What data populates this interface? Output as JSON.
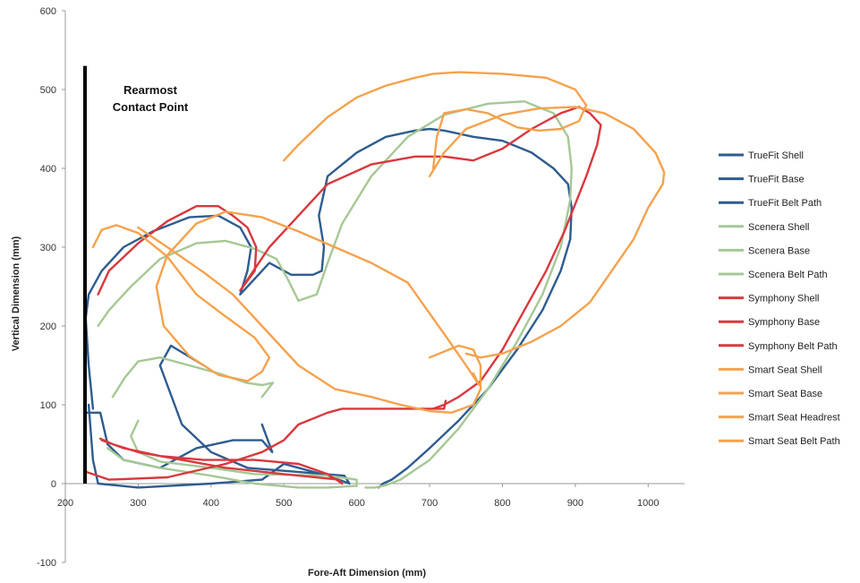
{
  "chart_data": {
    "type": "line",
    "xlabel": "Fore-Aft Dimension (mm)",
    "ylabel": "Vertical Dimension (mm)",
    "xlim": [
      200,
      1050
    ],
    "ylim": [
      -100,
      600
    ],
    "x_ticks": [
      "200",
      "300",
      "400",
      "500",
      "600",
      "700",
      "800",
      "900",
      "1000"
    ],
    "y_ticks": [
      "-100",
      "0",
      "100",
      "200",
      "300",
      "400",
      "500",
      "600"
    ],
    "grid": false,
    "legend_position": "right",
    "annotation": {
      "lines": [
        "Rearmost",
        "Contact Point"
      ],
      "x": 227,
      "y_from": 0,
      "y_to": 530
    },
    "colors": {
      "truefit": "#2E5C8F",
      "scenera": "#A6C895",
      "symphony": "#D9383E",
      "smart_seat": "#F5A24D"
    },
    "series": [
      {
        "name": "TrueFit Shell",
        "color": "#2E5C8F",
        "x": [
          238,
          232,
          228,
          232,
          250,
          280,
          320,
          370,
          410,
          440,
          455,
          450,
          440,
          480,
          510,
          540,
          552,
          555,
          548,
          560,
          600,
          640,
          680,
          700,
          720,
          760,
          800,
          840,
          870,
          890,
          895,
          893,
          880,
          855,
          820,
          780,
          740,
          700,
          670,
          648,
          636,
          630
        ],
        "y": [
          95,
          150,
          210,
          240,
          270,
          300,
          320,
          338,
          340,
          325,
          300,
          270,
          240,
          280,
          265,
          265,
          270,
          300,
          340,
          390,
          420,
          440,
          448,
          450,
          448,
          440,
          435,
          420,
          400,
          380,
          350,
          310,
          270,
          220,
          170,
          120,
          80,
          45,
          20,
          5,
          0,
          -5
        ]
      },
      {
        "name": "TrueFit Base",
        "color": "#2E5C8F",
        "x": [
          232,
          238,
          245,
          300,
          400,
          470,
          500,
          560,
          590,
          583,
          450,
          400,
          360,
          330,
          345,
          390
        ],
        "y": [
          100,
          30,
          0,
          -5,
          0,
          5,
          25,
          10,
          0,
          10,
          20,
          40,
          75,
          150,
          175,
          150
        ]
      },
      {
        "name": "TrueFit Belt Path",
        "color": "#2E5C8F",
        "x": [
          230,
          248,
          258,
          280,
          330,
          380,
          430,
          470,
          484,
          470
        ],
        "y": [
          90,
          90,
          50,
          30,
          20,
          45,
          55,
          55,
          40,
          75
        ]
      },
      {
        "name": "Scenera Shell",
        "color": "#A6C895",
        "x": [
          245,
          260,
          290,
          330,
          380,
          420,
          460,
          490,
          505,
          520,
          545,
          560,
          580,
          620,
          670,
          720,
          780,
          830,
          870,
          890,
          895,
          893,
          880,
          855,
          820,
          780,
          740,
          700,
          660,
          640,
          625,
          612
        ],
        "y": [
          200,
          220,
          250,
          285,
          305,
          308,
          298,
          285,
          260,
          232,
          240,
          280,
          330,
          390,
          440,
          468,
          482,
          485,
          470,
          440,
          400,
          360,
          300,
          240,
          180,
          120,
          70,
          30,
          5,
          -2,
          -5,
          -5
        ]
      },
      {
        "name": "Scenera Base",
        "color": "#A6C895",
        "x": [
          258,
          280,
          330,
          400,
          460,
          520,
          560,
          600,
          600,
          560,
          460,
          400,
          330,
          300,
          290,
          300
        ],
        "y": [
          45,
          30,
          20,
          10,
          0,
          -5,
          -5,
          -3,
          5,
          10,
          12,
          20,
          28,
          40,
          60,
          80
        ]
      },
      {
        "name": "Scenera Belt Path",
        "color": "#A6C895",
        "x": [
          265,
          282,
          300,
          330,
          370,
          410,
          448,
          470,
          485,
          470
        ],
        "y": [
          110,
          135,
          155,
          160,
          150,
          140,
          128,
          125,
          128,
          110
        ]
      },
      {
        "name": "Symphony Shell",
        "color": "#D9383E",
        "x": [
          245,
          260,
          300,
          340,
          380,
          410,
          430,
          450,
          462,
          460,
          440,
          480,
          520,
          560,
          620,
          680,
          720,
          760,
          800,
          840,
          880,
          905,
          920,
          935,
          930,
          915,
          885,
          860,
          830,
          800,
          770,
          740,
          720,
          705
        ],
        "y": [
          240,
          270,
          305,
          333,
          352,
          352,
          340,
          325,
          300,
          270,
          245,
          300,
          340,
          380,
          405,
          415,
          415,
          410,
          425,
          450,
          470,
          478,
          470,
          455,
          430,
          390,
          320,
          270,
          220,
          170,
          130,
          110,
          100,
          95
        ]
      },
      {
        "name": "Symphony Base",
        "color": "#D9383E",
        "x": [
          228,
          260,
          340,
          420,
          470,
          500,
          520,
          560,
          580,
          582,
          720,
          722
        ],
        "y": [
          15,
          5,
          8,
          25,
          40,
          55,
          75,
          90,
          95,
          95,
          95,
          105
        ]
      },
      {
        "name": "Symphony Belt Path",
        "color": "#D9383E",
        "x": [
          250,
          280,
          330,
          390,
          460,
          520,
          560,
          580,
          575,
          500,
          420,
          360,
          300,
          265,
          248
        ],
        "y": [
          55,
          45,
          35,
          30,
          30,
          25,
          12,
          0,
          5,
          12,
          20,
          30,
          40,
          50,
          57
        ]
      },
      {
        "name": "Smart Seat Shell",
        "color": "#F5A24D",
        "x": [
          238,
          250,
          270,
          300,
          340,
          380,
          420,
          460,
          480,
          470,
          450,
          410,
          370,
          335,
          325,
          340,
          380,
          420,
          470,
          520,
          570,
          620,
          670,
          720,
          750,
          768,
          760
        ],
        "y": [
          300,
          322,
          328,
          318,
          288,
          240,
          212,
          185,
          160,
          142,
          130,
          138,
          162,
          200,
          250,
          290,
          330,
          345,
          338,
          320,
          300,
          280,
          255,
          190,
          150,
          125,
          140
        ]
      },
      {
        "name": "Smart Seat Base",
        "color": "#F5A24D",
        "x": [
          300,
          340,
          390,
          430,
          470,
          520,
          570,
          620,
          660,
          700,
          730,
          760,
          770,
          770,
          760,
          740,
          700
        ],
        "y": [
          325,
          300,
          268,
          240,
          200,
          150,
          120,
          110,
          100,
          92,
          90,
          100,
          120,
          150,
          170,
          175,
          160
        ]
      },
      {
        "name": "Smart Seat Headrest",
        "color": "#F5A24D",
        "x": [
          500,
          520,
          560,
          600,
          640,
          680,
          705,
          740,
          800,
          860,
          900,
          915,
          905,
          880,
          850,
          820,
          780,
          750,
          720,
          710,
          705
        ],
        "y": [
          410,
          430,
          465,
          490,
          505,
          515,
          520,
          522,
          520,
          515,
          500,
          480,
          460,
          450,
          448,
          452,
          470,
          475,
          470,
          440,
          400
        ]
      },
      {
        "name": "Smart Seat Belt Path",
        "color": "#F5A24D",
        "x": [
          700,
          720,
          750,
          800,
          850,
          900,
          940,
          980,
          1010,
          1022,
          1020,
          1000,
          980,
          950,
          920,
          880,
          840,
          800,
          770,
          750
        ],
        "y": [
          390,
          420,
          450,
          468,
          476,
          478,
          470,
          450,
          420,
          395,
          380,
          350,
          310,
          270,
          230,
          200,
          180,
          165,
          160,
          165
        ]
      }
    ]
  }
}
